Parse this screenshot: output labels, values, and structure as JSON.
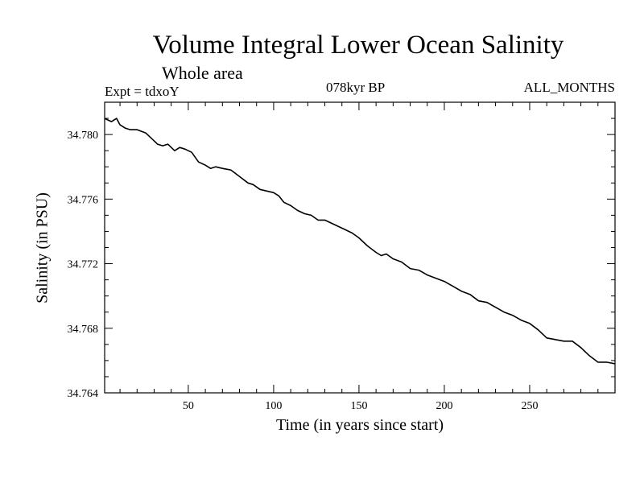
{
  "chart_data": {
    "type": "line",
    "title": "Volume Integral Lower Ocean Salinity",
    "subtitle": "Whole area",
    "expt_label": "Expt = tdxoY",
    "period_label": "078kyr BP",
    "months_label": "ALL_MONTHS",
    "xlabel": "Time (in years since start)",
    "ylabel": "Salinity (in PSU)",
    "xlim": [
      1,
      300
    ],
    "ylim": [
      34.764,
      34.782
    ],
    "xticks": [
      50,
      100,
      150,
      200,
      250
    ],
    "xtick_labels": [
      "50",
      "100",
      "150",
      "200",
      "250"
    ],
    "yticks": [
      34.764,
      34.768,
      34.772,
      34.776,
      34.78
    ],
    "ytick_labels": [
      "34.764",
      "34.768",
      "34.772",
      "34.776",
      "34.780"
    ],
    "grid": false,
    "line_color": "#000000",
    "series": [
      {
        "x": [
          1,
          5,
          8,
          10,
          13,
          16,
          20,
          25,
          28,
          32,
          35,
          38,
          42,
          45,
          48,
          52,
          56,
          60,
          63,
          66,
          70,
          75,
          80,
          85,
          88,
          92,
          96,
          100,
          103,
          106,
          110,
          114,
          118,
          122,
          126,
          130,
          134,
          138,
          142,
          146,
          150,
          155,
          160,
          163,
          166,
          170,
          175,
          180,
          185,
          190,
          195,
          200,
          205,
          210,
          215,
          220,
          225,
          230,
          235,
          240,
          245,
          250,
          255,
          260,
          265,
          270,
          275,
          280,
          285,
          290,
          295,
          300
        ],
        "y": [
          34.781,
          34.7808,
          34.781,
          34.7806,
          34.7804,
          34.7803,
          34.7803,
          34.7801,
          34.7798,
          34.7794,
          34.7793,
          34.7794,
          34.779,
          34.7792,
          34.7791,
          34.7789,
          34.7783,
          34.7781,
          34.7779,
          34.778,
          34.7779,
          34.7778,
          34.7774,
          34.777,
          34.7769,
          34.7766,
          34.7765,
          34.7764,
          34.7762,
          34.7758,
          34.7756,
          34.7753,
          34.7751,
          34.775,
          34.7747,
          34.7747,
          34.7745,
          34.7743,
          34.7741,
          34.7739,
          34.7736,
          34.7731,
          34.7727,
          34.7725,
          34.7726,
          34.7723,
          34.7721,
          34.7717,
          34.7716,
          34.7713,
          34.7711,
          34.7709,
          34.7706,
          34.7703,
          34.7701,
          34.7697,
          34.7696,
          34.7693,
          34.769,
          34.7688,
          34.7685,
          34.7683,
          34.7679,
          34.7674,
          34.7673,
          34.7672,
          34.7672,
          34.7668,
          34.7663,
          34.7659,
          34.7659,
          34.7658
        ]
      }
    ]
  }
}
